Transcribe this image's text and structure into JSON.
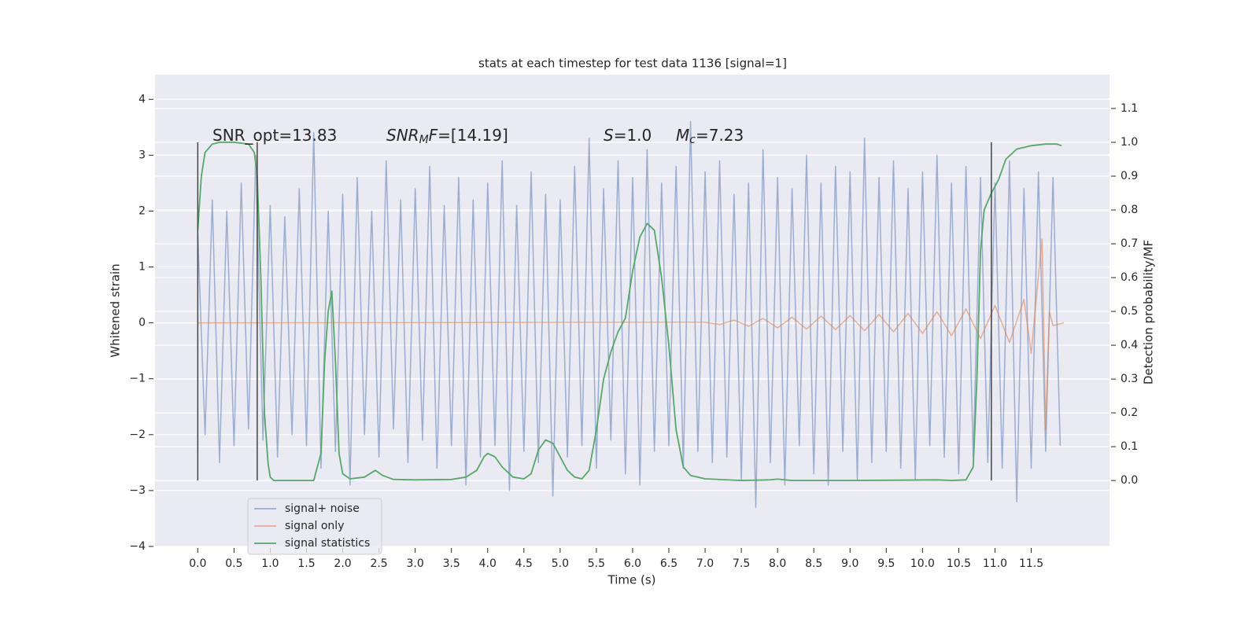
{
  "chart_data": {
    "type": "line",
    "title": "stats at each timestep for test data 1136 [signal=1]",
    "xlabel": "Time (s)",
    "ylabel": "Whitened strain",
    "y2label": "Detection probability/MF",
    "xlim": [
      -0.59,
      12.58
    ],
    "ylim": [
      -4.0,
      4.44
    ],
    "y2lim": [
      -0.195,
      1.2
    ],
    "xticks": [
      {
        "value": 0,
        "label": "0.0"
      },
      0.5,
      {
        "value": 1,
        "label": "1.0"
      },
      1.5,
      {
        "value": 2,
        "label": "2.0"
      },
      2.5,
      {
        "value": 3,
        "label": "3.0"
      },
      3.5,
      {
        "value": 4,
        "label": "4.0"
      },
      4.5,
      {
        "value": 5,
        "label": "5.0"
      },
      5.5,
      {
        "value": 6,
        "label": "6.0"
      },
      6.5,
      {
        "value": 7,
        "label": "7.0"
      },
      7.5,
      {
        "value": 8,
        "label": "8.0"
      },
      8.5,
      {
        "value": 9,
        "label": "9.0"
      },
      9.5,
      {
        "value": 10,
        "label": "10.0"
      },
      10.5,
      {
        "value": 11,
        "label": "11.0"
      },
      11.5
    ],
    "yticks": [
      {
        "value": -4,
        "label": "−4"
      },
      {
        "value": -3,
        "label": "−3"
      },
      {
        "value": -2,
        "label": "−2"
      },
      {
        "value": -1,
        "label": "−1"
      },
      0,
      1,
      2,
      3,
      4
    ],
    "y2ticks": [
      {
        "value": 0,
        "label": "0.0"
      },
      0.1,
      0.2,
      0.3,
      0.4,
      0.5,
      0.6,
      0.7,
      0.8,
      0.9,
      {
        "value": 1,
        "label": "1.0"
      },
      1.1
    ],
    "grid_axis": "y",
    "legend": "lower left",
    "series": [
      {
        "name": "signal+ noise",
        "color": "#4c72b0",
        "opacity": 0.5,
        "x": [
          0.0,
          0.1,
          0.2,
          0.3,
          0.4,
          0.5,
          0.6,
          0.7,
          0.8,
          0.9,
          1.0,
          1.1,
          1.2,
          1.3,
          1.4,
          1.5,
          1.6,
          1.7,
          1.8,
          1.9,
          2.0,
          2.1,
          2.2,
          2.3,
          2.4,
          2.5,
          2.6,
          2.7,
          2.8,
          2.9,
          3.0,
          3.1,
          3.2,
          3.3,
          3.4,
          3.5,
          3.6,
          3.7,
          3.8,
          3.9,
          4.0,
          4.1,
          4.2,
          4.3,
          4.4,
          4.5,
          4.6,
          4.7,
          4.8,
          4.9,
          5.0,
          5.1,
          5.2,
          5.3,
          5.4,
          5.5,
          5.6,
          5.7,
          5.8,
          5.9,
          6.0,
          6.1,
          6.2,
          6.3,
          6.4,
          6.5,
          6.6,
          6.7,
          6.8,
          6.9,
          7.0,
          7.1,
          7.2,
          7.3,
          7.4,
          7.5,
          7.6,
          7.7,
          7.8,
          7.9,
          8.0,
          8.1,
          8.2,
          8.3,
          8.4,
          8.5,
          8.6,
          8.7,
          8.8,
          8.9,
          9.0,
          9.1,
          9.2,
          9.3,
          9.4,
          9.5,
          9.6,
          9.7,
          9.8,
          9.9,
          10.0,
          10.1,
          10.2,
          10.3,
          10.4,
          10.5,
          10.6,
          10.7,
          10.8,
          10.9,
          11.0,
          11.1,
          11.2,
          11.3,
          11.4,
          11.5,
          11.6,
          11.7,
          11.8,
          11.9
        ],
        "values": [
          1.6,
          -2.0,
          2.2,
          -2.5,
          2.0,
          -2.2,
          2.5,
          -1.9,
          3.0,
          -2.1,
          2.1,
          -2.4,
          1.9,
          -2.0,
          2.4,
          -2.2,
          3.4,
          -2.6,
          2.0,
          -2.3,
          2.3,
          -2.9,
          2.6,
          -2.0,
          2.0,
          -2.4,
          2.9,
          -1.9,
          2.2,
          -2.5,
          2.4,
          -2.1,
          2.8,
          -2.6,
          2.1,
          -2.2,
          2.6,
          -2.9,
          2.2,
          -2.4,
          2.5,
          -2.2,
          2.9,
          -3.0,
          2.1,
          -2.3,
          2.7,
          -2.5,
          2.3,
          -3.1,
          2.2,
          -2.4,
          2.8,
          -2.2,
          3.3,
          -2.6,
          2.4,
          -2.1,
          2.9,
          -2.7,
          2.6,
          -2.9,
          3.1,
          -2.3,
          2.5,
          -2.2,
          2.8,
          -2.6,
          3.6,
          -2.3,
          2.7,
          -2.5,
          2.9,
          -2.4,
          2.3,
          -2.8,
          2.5,
          -3.3,
          3.1,
          -2.5,
          2.6,
          -2.9,
          2.4,
          -2.2,
          3.0,
          -2.7,
          2.5,
          -2.9,
          2.8,
          -2.3,
          2.7,
          -2.8,
          3.3,
          -2.5,
          2.6,
          -2.3,
          2.9,
          -2.6,
          2.4,
          -2.8,
          2.7,
          -2.2,
          3.0,
          -2.4,
          2.5,
          -2.7,
          2.8,
          -2.4,
          2.6,
          -2.5,
          2.5,
          -2.6,
          2.9,
          -3.2,
          2.4,
          -2.6,
          2.7,
          -2.3,
          2.6,
          -2.2
        ]
      },
      {
        "name": "signal only",
        "color": "#dd8452",
        "opacity": 0.6,
        "x": [
          0.0,
          7.0,
          7.2,
          7.4,
          7.6,
          7.8,
          8.0,
          8.2,
          8.4,
          8.6,
          8.8,
          9.0,
          9.2,
          9.4,
          9.6,
          9.8,
          10.0,
          10.2,
          10.4,
          10.6,
          10.8,
          11.0,
          11.2,
          11.4,
          11.5,
          11.6,
          11.65,
          11.7,
          11.75,
          11.8,
          11.95
        ],
        "values": [
          0.0,
          0.01,
          -0.03,
          0.05,
          -0.06,
          0.08,
          -0.09,
          0.1,
          -0.11,
          0.12,
          -0.12,
          0.13,
          -0.14,
          0.15,
          -0.16,
          0.17,
          -0.19,
          0.2,
          -0.23,
          0.25,
          -0.28,
          0.31,
          -0.35,
          0.42,
          -0.55,
          0.85,
          1.5,
          -1.9,
          0.2,
          -0.05,
          0.0
        ]
      },
      {
        "name": "signal statistics",
        "color": "#55a868",
        "opacity": 1,
        "axis": "y2",
        "x": [
          0.0,
          0.05,
          0.1,
          0.2,
          0.3,
          0.5,
          0.7,
          0.78,
          0.82,
          0.87,
          0.92,
          0.97,
          1.0,
          1.05,
          1.6,
          1.7,
          1.75,
          1.8,
          1.85,
          1.9,
          1.95,
          2.0,
          2.1,
          2.3,
          2.45,
          2.55,
          2.7,
          3.0,
          3.5,
          3.7,
          3.85,
          3.95,
          4.0,
          4.1,
          4.2,
          4.35,
          4.5,
          4.6,
          4.7,
          4.8,
          4.9,
          5.0,
          5.1,
          5.2,
          5.3,
          5.4,
          5.5,
          5.6,
          5.7,
          5.8,
          5.9,
          6.0,
          6.1,
          6.2,
          6.3,
          6.4,
          6.5,
          6.6,
          6.7,
          6.8,
          7.0,
          7.5,
          7.9,
          8.0,
          8.2,
          9.0,
          9.7,
          10.2,
          10.4,
          10.6,
          10.7,
          10.75,
          10.8,
          10.85,
          10.95,
          11.05,
          11.15,
          11.3,
          11.5,
          11.7,
          11.85,
          11.92
        ],
        "values": [
          0.74,
          0.9,
          0.97,
          0.995,
          1.0,
          1.0,
          0.995,
          0.97,
          0.9,
          0.6,
          0.2,
          0.05,
          0.01,
          0.0,
          0.0,
          0.08,
          0.35,
          0.5,
          0.56,
          0.35,
          0.08,
          0.02,
          0.005,
          0.01,
          0.03,
          0.015,
          0.003,
          0.002,
          0.003,
          0.01,
          0.03,
          0.07,
          0.08,
          0.07,
          0.04,
          0.01,
          0.005,
          0.02,
          0.09,
          0.12,
          0.11,
          0.07,
          0.03,
          0.01,
          0.005,
          0.03,
          0.15,
          0.3,
          0.38,
          0.44,
          0.48,
          0.62,
          0.72,
          0.76,
          0.74,
          0.6,
          0.4,
          0.15,
          0.04,
          0.015,
          0.005,
          0.0,
          0.002,
          0.004,
          0.0,
          0.0,
          0.001,
          0.002,
          0.0,
          0.002,
          0.04,
          0.3,
          0.68,
          0.8,
          0.85,
          0.89,
          0.95,
          0.98,
          0.99,
          0.995,
          0.995,
          0.99
        ]
      }
    ],
    "vlines": {
      "x": [
        0.0,
        0.82,
        10.95
      ],
      "axis": "y2",
      "ymin": 0,
      "ymax": 1,
      "color": "#444444"
    },
    "annotations": [
      {
        "parts": [
          {
            "text": "SNR_opt=13.83"
          }
        ]
      },
      {
        "parts": [
          {
            "text": "SNR",
            "style": "italic"
          },
          {
            "text": "M",
            "style": "italic-sub"
          },
          {
            "text": "F",
            "style": "italic"
          },
          {
            "text": "=[14.19]"
          }
        ]
      },
      {
        "parts": [
          {
            "text": "S",
            "style": "italic"
          },
          {
            "text": "=1.0"
          }
        ]
      },
      {
        "parts": [
          {
            "text": "M",
            "style": "italic"
          },
          {
            "text": "c",
            "style": "italic-sub"
          },
          {
            "text": "=7.23"
          }
        ]
      }
    ]
  }
}
